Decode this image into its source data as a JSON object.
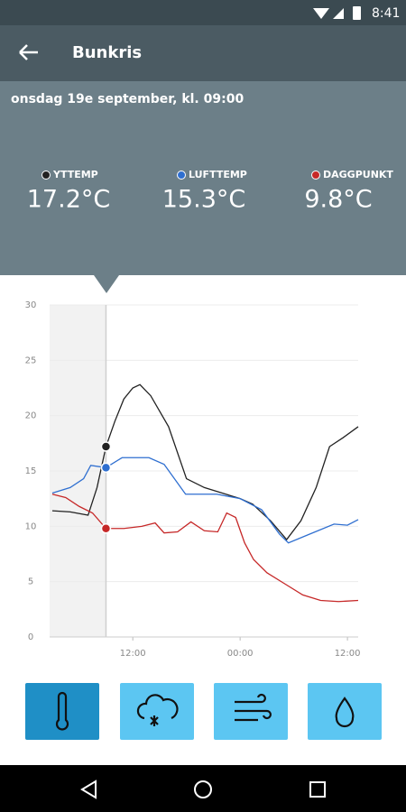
{
  "status": {
    "time": "8:41"
  },
  "app_bar": {
    "title": "Bunkris"
  },
  "header": {
    "date": "onsdag 19e september, kl. 09:00",
    "readings": [
      {
        "label": "YTTEMP",
        "value": "17.2°C"
      },
      {
        "label": "LUFTTEMP",
        "value": "15.3°C"
      },
      {
        "label": "DAGGPUNKT",
        "value": "9.8°C"
      }
    ]
  },
  "chart_data": {
    "type": "line",
    "xlim": [
      2.7,
      37.2
    ],
    "xticks": [
      {
        "value": 12,
        "label": "12:00"
      },
      {
        "value": 24,
        "label": "00:00"
      },
      {
        "value": 36,
        "label": "12:00"
      }
    ],
    "ylim": [
      0,
      30
    ],
    "yticks": [
      0,
      5,
      10,
      15,
      20,
      25,
      30
    ],
    "grid": true,
    "series": [
      {
        "name": "YTTEMP",
        "color": "#222222",
        "x": [
          3,
          5,
          7,
          8,
          9,
          10,
          11,
          12,
          12.8,
          14,
          16,
          18,
          20,
          22,
          24,
          25.4,
          27.4,
          29.2,
          30.8,
          32.5,
          34,
          35.5,
          37.2
        ],
        "values": [
          11.4,
          11.3,
          11.0,
          13.5,
          17.2,
          19.5,
          21.5,
          22.5,
          22.8,
          21.8,
          19.0,
          14.3,
          13.5,
          13.0,
          12.5,
          12.0,
          10.5,
          8.8,
          10.5,
          13.5,
          17.2,
          18.0,
          19.0
        ]
      },
      {
        "name": "LUFTTEMP",
        "color": "#2f6fd0",
        "x": [
          3,
          5,
          6.5,
          7.3,
          9,
          10.8,
          13.8,
          15.5,
          17.9,
          21.4,
          24,
          26.4,
          28.4,
          29.4,
          31.5,
          34.5,
          36,
          37.2
        ],
        "values": [
          13.0,
          13.5,
          14.3,
          15.5,
          15.3,
          16.2,
          16.2,
          15.6,
          12.9,
          12.9,
          12.5,
          11.5,
          9.3,
          8.5,
          9.2,
          10.2,
          10.1,
          10.6
        ]
      },
      {
        "name": "DAGGPUNKT",
        "color": "#c62828",
        "x": [
          3,
          4.5,
          6,
          7.5,
          9,
          11,
          13,
          14.5,
          15.5,
          17,
          18.5,
          20,
          21.5,
          22.5,
          23.5,
          24.5,
          25.5,
          27,
          29,
          31,
          33,
          35,
          37.2
        ],
        "values": [
          12.9,
          12.6,
          11.8,
          11.2,
          9.8,
          9.8,
          10.0,
          10.3,
          9.4,
          9.5,
          10.4,
          9.6,
          9.5,
          11.2,
          10.8,
          8.5,
          7.0,
          5.8,
          4.8,
          3.8,
          3.3,
          3.2,
          3.3
        ]
      }
    ]
  }
}
